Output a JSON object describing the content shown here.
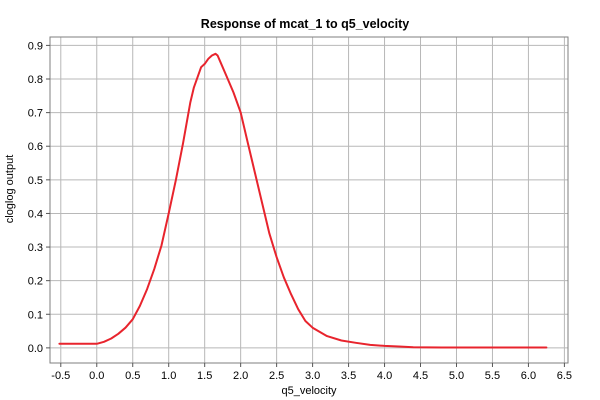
{
  "chart_data": {
    "type": "line",
    "title": "Response of mcat_1 to q5_velocity",
    "xlabel": "q5_velocity",
    "ylabel": "cloglog output",
    "xlim": [
      -0.65,
      6.55
    ],
    "ylim": [
      -0.045,
      0.925
    ],
    "xticks": [
      -0.5,
      0.0,
      0.5,
      1.0,
      1.5,
      2.0,
      2.5,
      3.0,
      3.5,
      4.0,
      4.5,
      5.0,
      5.5,
      6.0,
      6.5
    ],
    "xtick_labels": [
      "-0.5",
      "0.0",
      "0.5",
      "1.0",
      "1.5",
      "2.0",
      "2.5",
      "3.0",
      "3.5",
      "4.0",
      "4.5",
      "5.0",
      "5.5",
      "6.0",
      "6.5"
    ],
    "yticks": [
      0.0,
      0.1,
      0.2,
      0.3,
      0.4,
      0.5,
      0.6,
      0.7,
      0.8,
      0.9
    ],
    "ytick_labels": [
      "0.0",
      "0.1",
      "0.2",
      "0.3",
      "0.4",
      "0.5",
      "0.6",
      "0.7",
      "0.8",
      "0.9"
    ],
    "grid": true,
    "legend": false,
    "series": [
      {
        "color": "#e8242d",
        "x": [
          -0.52,
          -0.3,
          -0.1,
          0.0,
          0.1,
          0.2,
          0.3,
          0.4,
          0.5,
          0.6,
          0.7,
          0.8,
          0.9,
          1.0,
          1.1,
          1.2,
          1.3,
          1.35,
          1.4,
          1.45,
          1.5,
          1.55,
          1.6,
          1.65,
          1.68,
          1.72,
          1.8,
          1.9,
          2.0,
          2.1,
          2.2,
          2.3,
          2.4,
          2.5,
          2.6,
          2.7,
          2.8,
          2.9,
          3.0,
          3.2,
          3.4,
          3.6,
          3.8,
          4.0,
          4.2,
          4.4,
          4.8,
          5.2,
          5.6,
          6.0,
          6.25
        ],
        "y": [
          0.012,
          0.012,
          0.012,
          0.012,
          0.018,
          0.028,
          0.042,
          0.06,
          0.085,
          0.125,
          0.175,
          0.235,
          0.305,
          0.4,
          0.5,
          0.61,
          0.73,
          0.775,
          0.805,
          0.835,
          0.845,
          0.86,
          0.87,
          0.875,
          0.87,
          0.85,
          0.81,
          0.76,
          0.7,
          0.61,
          0.52,
          0.43,
          0.34,
          0.27,
          0.21,
          0.16,
          0.115,
          0.08,
          0.06,
          0.035,
          0.022,
          0.015,
          0.009,
          0.006,
          0.004,
          0.002,
          0.001,
          0.001,
          0.001,
          0.001,
          0.001
        ]
      }
    ]
  }
}
